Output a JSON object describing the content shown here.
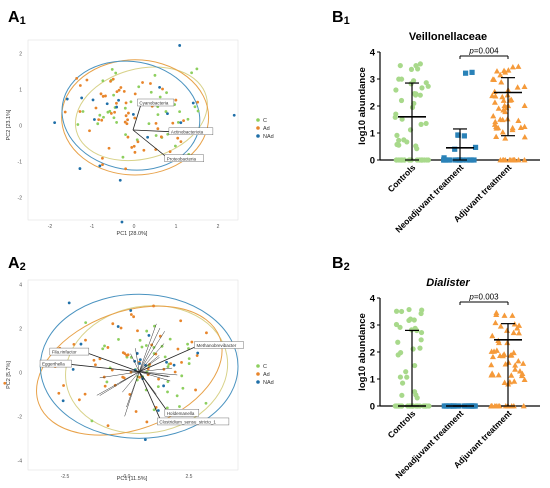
{
  "panel_labels": {
    "a1": {
      "main": "A",
      "sub": "1"
    },
    "a2": {
      "main": "A",
      "sub": "2"
    },
    "b1": {
      "main": "B",
      "sub": "1"
    },
    "b2": {
      "main": "B",
      "sub": "2"
    }
  },
  "colors": {
    "C": "#8dcf5f",
    "Ad": "#e8852b",
    "NAd": "#1f6fa8",
    "ellipse_C": "#d8d28a",
    "ellipse_Ad": "#e8a24a",
    "ellipse_NAd": "#4a93c0",
    "B_controls": "#a8d98b",
    "B_neo": "#2a82b8",
    "B_adj": "#f59a3a"
  },
  "chart_data": [
    {
      "id": "a1",
      "type": "scatter",
      "title": "",
      "xlabel": "PC1 [28.0%]",
      "ylabel": "PC2 [23.1%]",
      "xlim": [
        -2.5,
        2.5
      ],
      "ylim": [
        -2.5,
        2.5
      ],
      "xticks": [
        "-2",
        "-1",
        "0",
        "1",
        "2"
      ],
      "yticks": [
        "2",
        "1",
        "0",
        "-1",
        "-2"
      ],
      "legend": [
        "C",
        "Ad",
        "NAd"
      ],
      "legend_position": "right",
      "grid": false,
      "vector_labels": [
        "Cyanobacteria",
        "Actinobacteriota",
        "Proteobacteria"
      ],
      "vectors": [
        {
          "x": 0.2,
          "y": 0.75
        },
        {
          "x": 0.95,
          "y": -0.05
        },
        {
          "x": 0.85,
          "y": -0.8
        }
      ],
      "ellipses": [
        {
          "group": "C",
          "cx": 0.2,
          "cy": 0.45,
          "rx": 1.6,
          "ry": 1.25,
          "angle": -15
        },
        {
          "group": "Ad",
          "cx": 0.05,
          "cy": 0.35,
          "rx": 1.75,
          "ry": 1.6,
          "angle": 0
        },
        {
          "group": "NAd",
          "cx": -0.05,
          "cy": 0.4,
          "rx": 1.65,
          "ry": 1.5,
          "angle": 10
        }
      ]
    },
    {
      "id": "a2",
      "type": "scatter",
      "title": "",
      "xlabel": "PC1 [11.5%]",
      "ylabel": "PC2 [5.7%]",
      "xlim": [
        -4.5,
        4.0
      ],
      "ylim": [
        -4.5,
        4.2
      ],
      "xticks": [
        "-2.5",
        "0.0",
        "2.5"
      ],
      "yticks": [
        "4",
        "2",
        "0",
        "-2",
        "-4"
      ],
      "legend": [
        "C",
        "Ad",
        "NAd"
      ],
      "legend_position": "right",
      "grid": false,
      "vector_labels": [
        "Fila.rinfactor",
        "Eggerthella",
        "Methanobrevibacter",
        "Holdemanella",
        "Clostridium_sensu_stricto_1"
      ],
      "vectors": [
        {
          "x": -2.2,
          "y": 0.9
        },
        {
          "x": -2.9,
          "y": 0.35
        },
        {
          "x": 2.4,
          "y": 1.2
        },
        {
          "x": 1.2,
          "y": -1.9
        },
        {
          "x": 0.9,
          "y": -2.3
        }
      ],
      "ellipses": [
        {
          "group": "C",
          "cx": 0.3,
          "cy": 0.1,
          "rx": 3.3,
          "ry": 2.9,
          "angle": -10
        },
        {
          "group": "Ad",
          "cx": -0.4,
          "cy": 0.05,
          "rx": 3.9,
          "ry": 2.7,
          "angle": -20
        },
        {
          "group": "NAd",
          "cx": 0.0,
          "cy": 0.25,
          "rx": 4.0,
          "ry": 3.3,
          "angle": 0
        }
      ]
    },
    {
      "id": "b1",
      "type": "scatter",
      "title": "Veillonellaceae",
      "title_italic": false,
      "ylabel": "log10 abundance",
      "ylim": [
        0,
        4
      ],
      "yticks": [
        0,
        1,
        2,
        3,
        4
      ],
      "categories": [
        "Controls",
        "Neoadjuvant treatment",
        "Adjuvant treatment"
      ],
      "markers": [
        "circle",
        "square",
        "triangle"
      ],
      "median": [
        1.6,
        0.45,
        2.5
      ],
      "error_low": [
        0.0,
        0.0,
        0.9
      ],
      "error_high": [
        2.85,
        1.15,
        3.05
      ],
      "pvalue": {
        "label": "p=0.004",
        "from": 1,
        "to": 2,
        "y": 3.85
      }
    },
    {
      "id": "b2",
      "type": "scatter",
      "title": "Dialister",
      "title_italic": true,
      "ylabel": "log10 abundance",
      "ylim": [
        0,
        4
      ],
      "yticks": [
        0,
        1,
        2,
        3,
        4
      ],
      "categories": [
        "Controls",
        "Neoadjuvant treatment",
        "Adjuvant treatment"
      ],
      "markers": [
        "circle",
        "square",
        "triangle"
      ],
      "median": [
        0.0,
        0.0,
        2.45
      ],
      "error_low": [
        0.0,
        0.0,
        0.0
      ],
      "error_high": [
        2.8,
        0.0,
        3.05
      ],
      "pvalue": {
        "label": "p=0.003",
        "from": 1,
        "to": 2,
        "y": 3.85
      }
    }
  ]
}
